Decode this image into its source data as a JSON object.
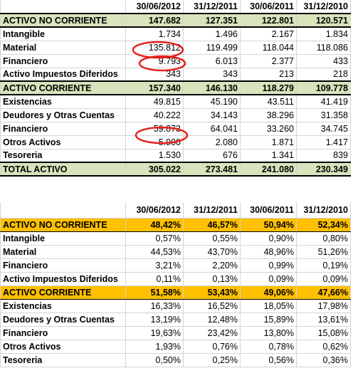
{
  "table1": {
    "header": [
      "",
      "30/06/2012",
      "31/12/2011",
      "30/06/2011",
      "31/12/2010"
    ],
    "rows": [
      {
        "kind": "sec",
        "label": "ACTIVO NO CORRIENTE",
        "values": [
          "147.682",
          "127.351",
          "122.801",
          "120.571"
        ]
      },
      {
        "kind": "item",
        "label": "Intangible",
        "values": [
          "1.734",
          "1.496",
          "2.167",
          "1.834"
        ]
      },
      {
        "kind": "item",
        "label": "Material",
        "values": [
          "135.812",
          "119.499",
          "118.044",
          "118.086"
        ]
      },
      {
        "kind": "item",
        "label": "Financiero",
        "values": [
          "9.793",
          "6.013",
          "2.377",
          "433"
        ]
      },
      {
        "kind": "item",
        "label": "Activo Impuestos Diferidos",
        "values": [
          "343",
          "343",
          "213",
          "218"
        ]
      },
      {
        "kind": "sec",
        "label": "ACTIVO CORRIENTE",
        "values": [
          "157.340",
          "146.130",
          "118.279",
          "109.778"
        ]
      },
      {
        "kind": "item",
        "label": "Existencias",
        "values": [
          "49.815",
          "45.190",
          "43.511",
          "41.419"
        ]
      },
      {
        "kind": "item",
        "label": "Deudores y Otras Cuentas",
        "values": [
          "40.222",
          "34.143",
          "38.296",
          "31.358"
        ]
      },
      {
        "kind": "item",
        "label": "Financiero",
        "values": [
          "59.873",
          "64.041",
          "33.260",
          "34.745"
        ]
      },
      {
        "kind": "item",
        "label": "Otros Activos",
        "values": [
          "5.900",
          "2.080",
          "1.871",
          "1.417"
        ]
      },
      {
        "kind": "item",
        "label": "Tesoreria",
        "values": [
          "1.530",
          "676",
          "1.341",
          "839"
        ]
      },
      {
        "kind": "total",
        "label": "TOTAL ACTIVO",
        "values": [
          "305.022",
          "273.481",
          "241.080",
          "230.349"
        ]
      }
    ]
  },
  "table2": {
    "header": [
      "",
      "30/06/2012",
      "31/12/2011",
      "30/06/2011",
      "31/12/2010"
    ],
    "rows": [
      {
        "kind": "sec",
        "label": "ACTIVO NO CORRIENTE",
        "values": [
          "48,42%",
          "46,57%",
          "50,94%",
          "52,34%"
        ]
      },
      {
        "kind": "item",
        "label": "Intangible",
        "values": [
          "0,57%",
          "0,55%",
          "0,90%",
          "0,80%"
        ]
      },
      {
        "kind": "item",
        "label": "Material",
        "values": [
          "44,53%",
          "43,70%",
          "48,96%",
          "51,26%"
        ]
      },
      {
        "kind": "item",
        "label": "Financiero",
        "values": [
          "3,21%",
          "2,20%",
          "0,99%",
          "0,19%"
        ]
      },
      {
        "kind": "item",
        "label": "Activo Impuestos Diferidos",
        "values": [
          "0,11%",
          "0,13%",
          "0,09%",
          "0,09%"
        ]
      },
      {
        "kind": "sec",
        "label": "ACTIVO CORRIENTE",
        "values": [
          "51,58%",
          "53,43%",
          "49,06%",
          "47,66%"
        ]
      },
      {
        "kind": "item",
        "label": "Existencias",
        "values": [
          "16,33%",
          "16,52%",
          "18,05%",
          "17,98%"
        ]
      },
      {
        "kind": "item",
        "label": "Deudores y Otras Cuentas",
        "values": [
          "13,19%",
          "12,48%",
          "15,89%",
          "13,61%"
        ]
      },
      {
        "kind": "item",
        "label": "Financiero",
        "values": [
          "19,63%",
          "23,42%",
          "13,80%",
          "15,08%"
        ]
      },
      {
        "kind": "item",
        "label": "Otros Activos",
        "values": [
          "1,93%",
          "0,76%",
          "0,78%",
          "0,62%"
        ]
      },
      {
        "kind": "item",
        "label": "Tesoreria",
        "values": [
          "0,50%",
          "0,25%",
          "0,56%",
          "0,36%"
        ]
      }
    ]
  },
  "annotations": {
    "circle_color": "#e8201a",
    "circled_values": [
      "135.812",
      "9.793",
      "59.873"
    ]
  },
  "colors": {
    "green_section": "#d8e4bc",
    "orange_section": "#ffc000"
  }
}
